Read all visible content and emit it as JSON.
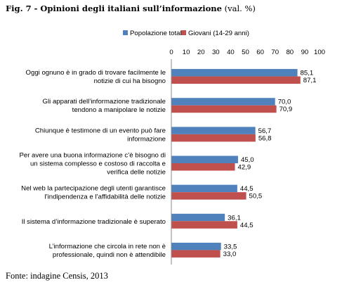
{
  "figure": {
    "title_bold": "Fig. 7 - Opinioni degli italiani sull’informazione",
    "title_rest": " (val. %)",
    "source": "Fonte: indagine Censis, 2013"
  },
  "chart_data": {
    "type": "bar",
    "orientation": "horizontal",
    "xlim": [
      0,
      100
    ],
    "xticks": [
      0,
      10,
      20,
      30,
      40,
      50,
      60,
      70,
      80,
      90,
      100
    ],
    "grid": false,
    "legend_position": "top",
    "categories": [
      [
        "Oggi ognuno è in grado di trovare facilmente le",
        "notizie di cui ha bisogno"
      ],
      [
        "Gli apparati dell’informazione tradizionale",
        "tendono a manipolare le notizie"
      ],
      [
        "Chiunque è testimone di un evento può fare",
        "informazione"
      ],
      [
        "Per avere una buona informazione c’è bisogno di",
        "un sistema complesso e costoso di raccolta e",
        "verifica delle notizie"
      ],
      [
        "Nel web la partecipazione degli utenti garantisce",
        "l’indipendenza e l’affidabilità delle notizie"
      ],
      [
        "Il sistema d’informazione tradizionale è superato"
      ],
      [
        "L’informazione che circola in rete non è",
        "professionale, quindi non è attendibile"
      ]
    ],
    "series": [
      {
        "name": "Popolazione totale",
        "color": "#4f81bd",
        "values": [
          85.1,
          70.0,
          56.7,
          45.0,
          44.5,
          36.1,
          33.5
        ],
        "labels": [
          "85,1",
          "70,0",
          "56,7",
          "45,0",
          "44,5",
          "36,1",
          "33,5"
        ]
      },
      {
        "name": "Giovani (14-29 anni)",
        "color": "#c0504d",
        "values": [
          87.1,
          70.9,
          56.8,
          42.9,
          50.5,
          44.5,
          33.0
        ],
        "labels": [
          "87,1",
          "70,9",
          "56,8",
          "42,9",
          "50,5",
          "44,5",
          "33,0"
        ]
      }
    ]
  }
}
